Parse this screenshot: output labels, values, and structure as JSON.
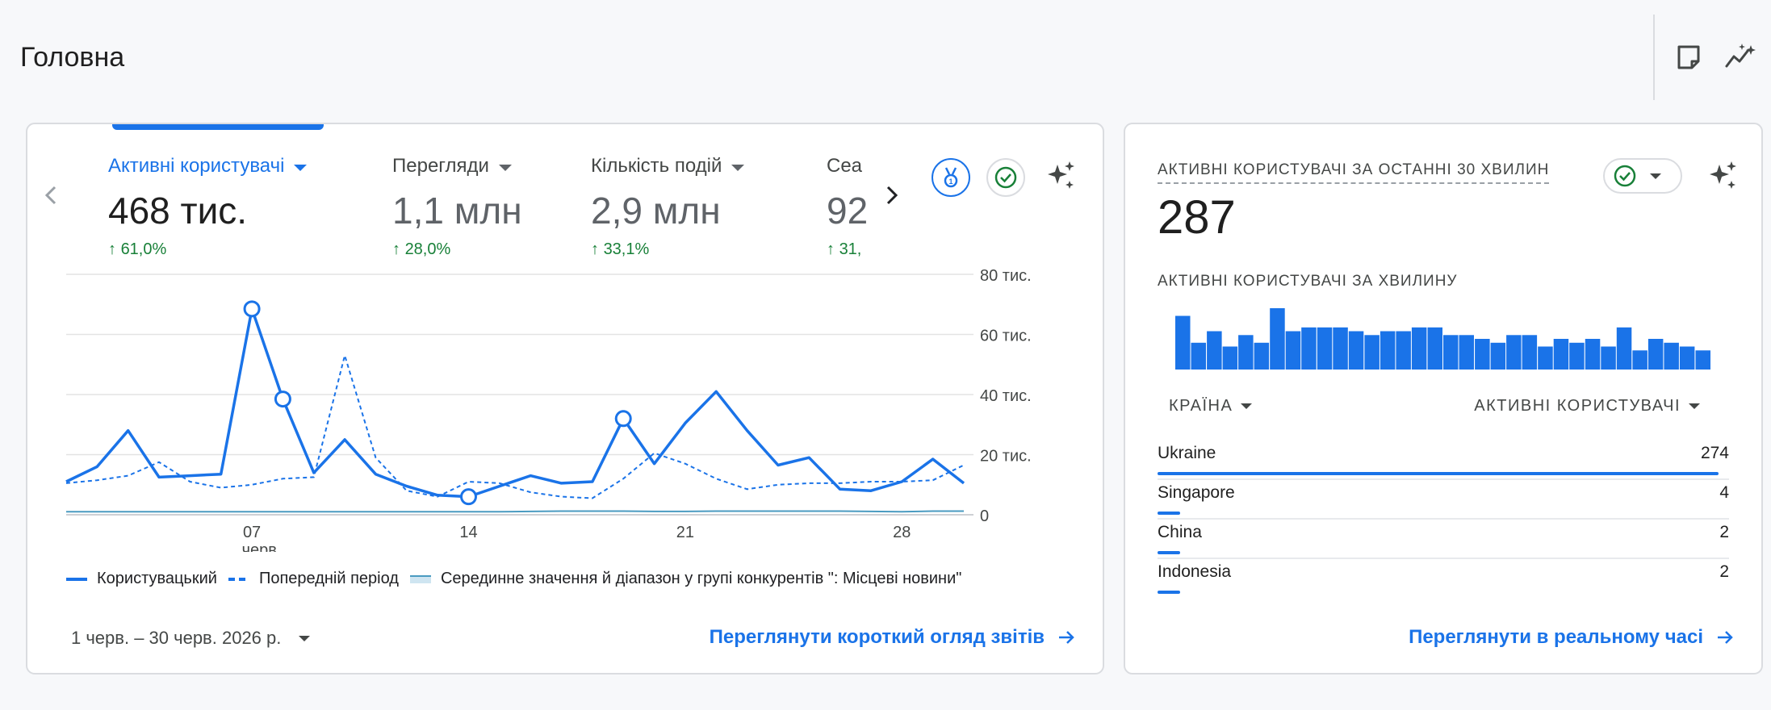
{
  "page": {
    "title": "Головна"
  },
  "overview": {
    "metrics": [
      {
        "name": "Активні користувачі",
        "value": "468 тис.",
        "change": "61,0%"
      },
      {
        "name": "Перегляди",
        "value": "1,1 млн",
        "change": "28,0%"
      },
      {
        "name": "Кількість подій",
        "value": "2,9 млн",
        "change": "33,1%"
      },
      {
        "name": "Сеа",
        "value": "92",
        "change": "31,"
      }
    ],
    "legend": [
      "Користувацький",
      "Попередній період",
      "Серединне значення й діапазон у групі конкурентів \": Місцеві новини\""
    ],
    "date_range": "1 черв. – 30 черв. 2026 р.",
    "link": "Переглянути короткий огляд звітів"
  },
  "chart_data": {
    "type": "line",
    "x": [
      1,
      2,
      3,
      4,
      5,
      6,
      7,
      8,
      9,
      10,
      11,
      12,
      13,
      14,
      15,
      16,
      17,
      18,
      19,
      20,
      21,
      22,
      23,
      24,
      25,
      26,
      27,
      28,
      29,
      30
    ],
    "xtick_labels": [
      "07",
      "14",
      "21",
      "28"
    ],
    "xtick_positions": [
      7,
      14,
      21,
      28
    ],
    "xtick_sublabel": "черв.",
    "ylim": [
      0,
      80000
    ],
    "ytick_labels": [
      "80 тис.",
      "60 тис.",
      "40 тис.",
      "20 тис.",
      "0"
    ],
    "ytick_values": [
      80000,
      60000,
      40000,
      20000,
      0
    ],
    "series": [
      {
        "name": "Користувацький",
        "style": "solid",
        "values": [
          11000,
          16000,
          28000,
          12500,
          13000,
          13500,
          68500,
          38500,
          14000,
          25000,
          13500,
          9500,
          6500,
          6000,
          9500,
          13000,
          10500,
          11000,
          32000,
          17000,
          30500,
          41000,
          28000,
          16500,
          19000,
          8500,
          8000,
          11000,
          18500,
          10500
        ]
      },
      {
        "name": "Попередній період",
        "style": "dashed",
        "values": [
          10500,
          11500,
          13000,
          17500,
          11000,
          9000,
          10000,
          12000,
          12500,
          53000,
          19000,
          8000,
          6000,
          11000,
          10500,
          7500,
          6000,
          5500,
          12000,
          20500,
          17000,
          12000,
          8500,
          10000,
          10500,
          10500,
          11000,
          11000,
          11500,
          16500
        ]
      },
      {
        "name": "Серединне значення й діапазон у групі конкурентів \": Місцеві новини\"",
        "style": "band",
        "values": [
          1000,
          1000,
          1000,
          1000,
          1000,
          1000,
          1000,
          1000,
          1000,
          1000,
          1000,
          1000,
          1000,
          1000,
          1000,
          1100,
          1200,
          1200,
          1200,
          1100,
          1100,
          1200,
          1200,
          1200,
          1200,
          1200,
          1100,
          1000,
          1200,
          1200
        ]
      }
    ],
    "highlighted_points": [
      7,
      8,
      14,
      19
    ],
    "colors": {
      "primary": "#1a73e8",
      "band": "#4a9bc1"
    }
  },
  "realtime": {
    "title": "АКТИВНІ КОРИСТУВАЧІ ЗА ОСТАННІ 30 ХВИЛИН",
    "value": "287",
    "subtitle": "АКТИВНІ КОРИСТУВАЧІ ЗА ХВИЛИНУ",
    "per_minute": [
      14,
      7,
      10,
      6,
      9,
      7,
      16,
      10,
      11,
      11,
      11,
      10,
      9,
      10,
      10,
      11,
      11,
      9,
      9,
      8,
      7,
      9,
      9,
      6,
      8,
      7,
      8,
      6,
      11,
      5,
      8,
      7,
      6,
      5
    ],
    "columns": [
      "КРАЇНА",
      "АКТИВНІ КОРИСТУВАЧІ"
    ],
    "rows": [
      {
        "country": "Ukraine",
        "count": "274",
        "share": 0.982
      },
      {
        "country": "Singapore",
        "count": "4",
        "share": 0.012
      },
      {
        "country": "China",
        "count": "2",
        "share": 0.006
      },
      {
        "country": "Indonesia",
        "count": "2",
        "share": 0.006
      }
    ],
    "link": "Переглянути в реальному часі"
  }
}
